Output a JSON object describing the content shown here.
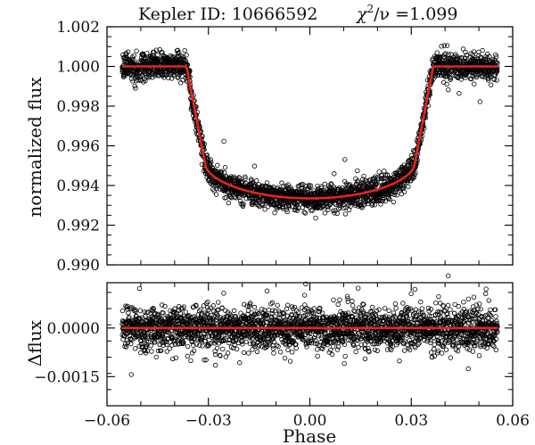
{
  "chart_data": {
    "type": "scatter",
    "title_left": "Kepler  ID: 10666592",
    "title_right_symbol": "χ",
    "title_right_sup": "2",
    "title_right_rest": "/ν =1.099",
    "colors": {
      "points": "#000000",
      "model": "#e8231c",
      "axes": "#000000",
      "background": "#ffffff"
    },
    "top_panel": {
      "ylabel": "normalized  flux",
      "xlim": [
        -0.06,
        0.06
      ],
      "ylim": [
        0.99,
        1.002
      ],
      "yticks": [
        0.99,
        0.992,
        0.994,
        0.996,
        0.998,
        1.0,
        1.002
      ],
      "ytick_labels": [
        "0.990",
        "0.992",
        "0.994",
        "0.996",
        "0.998",
        "1.000",
        "1.002"
      ],
      "data_phase_range": [
        -0.0555,
        0.0555
      ],
      "model": {
        "baseline": 1.0,
        "ingress_start": -0.0365,
        "ingress_end": -0.031,
        "egress_start": 0.031,
        "egress_end": 0.0365,
        "depth_at_contact": 0.9951,
        "depth_center": 0.99335
      },
      "scatter_sigma": 0.00032,
      "n_points": 2600
    },
    "bottom_panel": {
      "ylabel": "Δflux",
      "xlabel": "Phase",
      "xlim": [
        -0.06,
        0.06
      ],
      "ylim": [
        -0.0024,
        0.0014
      ],
      "yticks": [
        0.0,
        -0.0015
      ],
      "ytick_labels": [
        "0.0000",
        "−0.0015"
      ],
      "xticks": [
        -0.06,
        -0.03,
        0.0,
        0.03,
        0.06
      ],
      "xtick_labels": [
        "−0.06",
        "−0.03",
        "0.00",
        "0.03",
        "0.06"
      ],
      "data_phase_range": [
        -0.0555,
        0.0555
      ],
      "residual_model": 0.0,
      "scatter_sigma": 0.00032,
      "n_points": 2600
    }
  }
}
